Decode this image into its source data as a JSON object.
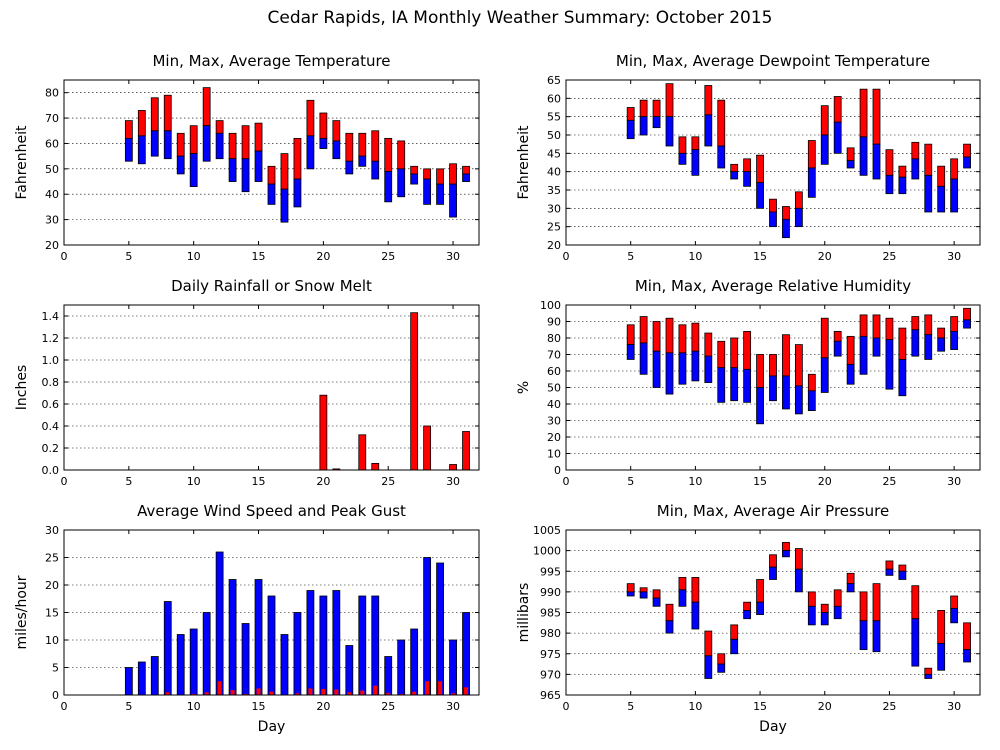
{
  "figure_title": "Cedar Rapids, IA Monthly Weather Summary: October 2015",
  "colors": {
    "max_series": "#ff0000",
    "min_series": "#0000ff"
  },
  "chart_data": [
    {
      "id": "temperature",
      "type": "bar",
      "subtype": "floating-range",
      "title": "Min, Max, Average Temperature",
      "xlabel": "",
      "ylabel": "Fahrenheit",
      "xlim": [
        0,
        32
      ],
      "ylim": [
        20,
        85
      ],
      "xticks": [
        0,
        5,
        10,
        15,
        20,
        25,
        30
      ],
      "yticks": [
        20,
        30,
        40,
        50,
        60,
        70,
        80
      ],
      "grid": true,
      "days": [
        5,
        6,
        7,
        8,
        9,
        10,
        11,
        12,
        13,
        14,
        15,
        16,
        17,
        18,
        19,
        20,
        21,
        22,
        23,
        24,
        25,
        26,
        27,
        28,
        29,
        30,
        31
      ],
      "max": [
        69,
        73,
        78,
        79,
        64,
        67,
        82,
        69,
        64,
        67,
        68,
        51,
        56,
        62,
        77,
        72,
        69,
        64,
        64,
        65,
        62,
        61,
        51,
        50,
        50,
        52,
        51
      ],
      "avg": [
        62,
        63,
        65,
        65,
        55,
        56,
        67,
        64,
        54,
        54,
        57,
        44,
        42,
        46,
        63,
        62,
        61,
        53,
        55,
        53,
        49,
        50,
        48,
        46,
        44,
        44,
        48
      ],
      "min": [
        53,
        52,
        55,
        54,
        48,
        43,
        53,
        54,
        45,
        41,
        45,
        36,
        29,
        35,
        50,
        58,
        54,
        48,
        51,
        46,
        37,
        39,
        44,
        36,
        36,
        31,
        45
      ]
    },
    {
      "id": "dewpoint",
      "type": "bar",
      "subtype": "floating-range",
      "title": "Min, Max, Average Dewpoint Temperature",
      "xlabel": "",
      "ylabel": "Fahrenheit",
      "xlim": [
        0,
        32
      ],
      "ylim": [
        20,
        65
      ],
      "xticks": [
        0,
        5,
        10,
        15,
        20,
        25,
        30
      ],
      "yticks": [
        20,
        25,
        30,
        35,
        40,
        45,
        50,
        55,
        60,
        65
      ],
      "grid": true,
      "days": [
        5,
        6,
        7,
        8,
        9,
        10,
        11,
        12,
        13,
        14,
        15,
        16,
        17,
        18,
        19,
        20,
        21,
        22,
        23,
        24,
        25,
        26,
        27,
        28,
        29,
        30,
        31
      ],
      "max": [
        57.5,
        59.5,
        59.5,
        64,
        49.5,
        49.5,
        63.5,
        59.5,
        42,
        43.5,
        44.5,
        32.5,
        30.5,
        34.5,
        48.5,
        58,
        60.5,
        46.5,
        62.5,
        62.5,
        46,
        41.5,
        48,
        47.5,
        41.5,
        43.5,
        47.5
      ],
      "avg": [
        54,
        55,
        55,
        55,
        45,
        46,
        55.5,
        47,
        40,
        40,
        37,
        29,
        27,
        30,
        41,
        50,
        53.5,
        43,
        49.5,
        47.5,
        39,
        38.5,
        43.5,
        39,
        36,
        38,
        44
      ],
      "min": [
        49,
        50,
        52,
        47,
        42,
        39,
        47,
        41,
        38,
        36,
        30,
        25,
        22,
        25,
        33,
        42,
        45,
        41,
        39,
        38,
        34,
        34,
        38,
        29,
        29,
        29,
        41
      ]
    },
    {
      "id": "rainfall",
      "type": "bar",
      "title": "Daily Rainfall or Snow Melt",
      "xlabel": "",
      "ylabel": "Inches",
      "xlim": [
        0,
        32
      ],
      "ylim": [
        0,
        1.5
      ],
      "xticks": [
        0,
        5,
        10,
        15,
        20,
        25,
        30
      ],
      "yticks": [
        0.0,
        0.2,
        0.4,
        0.6,
        0.8,
        1.0,
        1.2,
        1.4
      ],
      "ytick_labels": [
        "0.0",
        "0.2",
        "0.4",
        "0.6",
        "0.8",
        "1.0",
        "1.2",
        "1.4"
      ],
      "grid": true,
      "days": [
        5,
        6,
        7,
        8,
        9,
        10,
        11,
        12,
        13,
        14,
        15,
        16,
        17,
        18,
        19,
        20,
        21,
        22,
        23,
        24,
        25,
        26,
        27,
        28,
        29,
        30,
        31
      ],
      "values": [
        0,
        0,
        0,
        0,
        0,
        0,
        0,
        0,
        0,
        0,
        0,
        0,
        0,
        0,
        0,
        0.68,
        0.01,
        0,
        0.32,
        0.06,
        0,
        0,
        1.43,
        0.4,
        0,
        0.05,
        0.35
      ]
    },
    {
      "id": "humidity",
      "type": "bar",
      "subtype": "floating-range",
      "title": "Min, Max, Average Relative Humidity",
      "xlabel": "",
      "ylabel": "%",
      "xlim": [
        0,
        32
      ],
      "ylim": [
        0,
        100
      ],
      "xticks": [
        0,
        5,
        10,
        15,
        20,
        25,
        30
      ],
      "yticks": [
        0,
        10,
        20,
        30,
        40,
        50,
        60,
        70,
        80,
        90,
        100
      ],
      "grid": true,
      "days": [
        5,
        6,
        7,
        8,
        9,
        10,
        11,
        12,
        13,
        14,
        15,
        16,
        17,
        18,
        19,
        20,
        21,
        22,
        23,
        24,
        25,
        26,
        27,
        28,
        29,
        30,
        31
      ],
      "max": [
        88,
        93,
        90,
        92,
        88,
        89,
        83,
        78,
        80,
        84,
        70,
        70,
        82,
        76,
        58,
        92,
        84,
        81,
        94,
        94,
        92,
        86,
        93,
        94,
        86,
        93,
        98
      ],
      "avg": [
        76,
        77,
        72,
        71,
        71,
        72,
        69,
        62,
        62,
        61,
        50,
        57,
        57,
        51,
        48,
        68,
        78,
        64,
        81,
        80,
        79,
        67,
        85,
        82,
        80,
        84,
        91
      ],
      "min": [
        67,
        58,
        50,
        46,
        52,
        54,
        53,
        41,
        42,
        41,
        28,
        42,
        37,
        34,
        36,
        47,
        69,
        52,
        58,
        69,
        49,
        45,
        69,
        67,
        72,
        73,
        86
      ]
    },
    {
      "id": "wind",
      "type": "bar",
      "title": "Average Wind Speed and Peak Gust",
      "xlabel": "Day",
      "ylabel": "miles/hour",
      "xlim": [
        0,
        32
      ],
      "ylim": [
        0,
        30
      ],
      "xticks": [
        0,
        5,
        10,
        15,
        20,
        25,
        30
      ],
      "yticks": [
        0,
        5,
        10,
        15,
        20,
        25,
        30
      ],
      "grid": true,
      "days": [
        5,
        6,
        7,
        8,
        9,
        10,
        11,
        12,
        13,
        14,
        15,
        16,
        17,
        18,
        19,
        20,
        21,
        22,
        23,
        24,
        25,
        26,
        27,
        28,
        29,
        30,
        31
      ],
      "series": [
        {
          "role": "peak_gust",
          "values": [
            5,
            6,
            7,
            17,
            11,
            12,
            15,
            26,
            21,
            13,
            21,
            18,
            11,
            15,
            19,
            18,
            19,
            9,
            18,
            18,
            7,
            10,
            12,
            25,
            24,
            10,
            15
          ]
        },
        {
          "role": "average_speed",
          "values": [
            0,
            0,
            0,
            0.5,
            0,
            0.2,
            0.5,
            2.5,
            0.9,
            0.2,
            1.2,
            0.6,
            0,
            0.3,
            1.2,
            1.1,
            1,
            0.5,
            0.8,
            1.7,
            0.4,
            0.2,
            0.6,
            2.5,
            2.5,
            0.3,
            1.4
          ]
        }
      ]
    },
    {
      "id": "pressure",
      "type": "bar",
      "subtype": "floating-range",
      "title": "Min, Max, Average Air Pressure",
      "xlabel": "Day",
      "ylabel": "millibars",
      "xlim": [
        0,
        32
      ],
      "ylim": [
        965,
        1005
      ],
      "xticks": [
        0,
        5,
        10,
        15,
        20,
        25,
        30
      ],
      "yticks": [
        965,
        970,
        975,
        980,
        985,
        990,
        995,
        1000,
        1005
      ],
      "grid": true,
      "days": [
        5,
        6,
        7,
        8,
        9,
        10,
        11,
        12,
        13,
        14,
        15,
        16,
        17,
        18,
        19,
        20,
        21,
        22,
        23,
        24,
        25,
        26,
        27,
        28,
        29,
        30,
        31
      ],
      "max": [
        992,
        991,
        990.5,
        987,
        993.5,
        993.5,
        980.5,
        975,
        982,
        987.5,
        993,
        999,
        1002,
        1000.5,
        990,
        987,
        990.5,
        994.5,
        990,
        992,
        997.5,
        996.5,
        991.5,
        971.5,
        985.5,
        989,
        982.5
      ],
      "avg": [
        990,
        990,
        988.5,
        983,
        990.5,
        987.5,
        974.5,
        972.5,
        978.5,
        985.5,
        987.5,
        996,
        1000,
        995.5,
        986.5,
        985,
        986.5,
        992,
        983,
        983,
        995.5,
        995,
        983.5,
        970,
        977.5,
        986,
        976
      ],
      "min": [
        989,
        988.5,
        986.5,
        980,
        986.5,
        981,
        969,
        970.5,
        975,
        983.5,
        984.5,
        993,
        998.5,
        990,
        982,
        982,
        983.5,
        990,
        976,
        975.5,
        994,
        993,
        972,
        969,
        971,
        982.5,
        973
      ]
    }
  ]
}
